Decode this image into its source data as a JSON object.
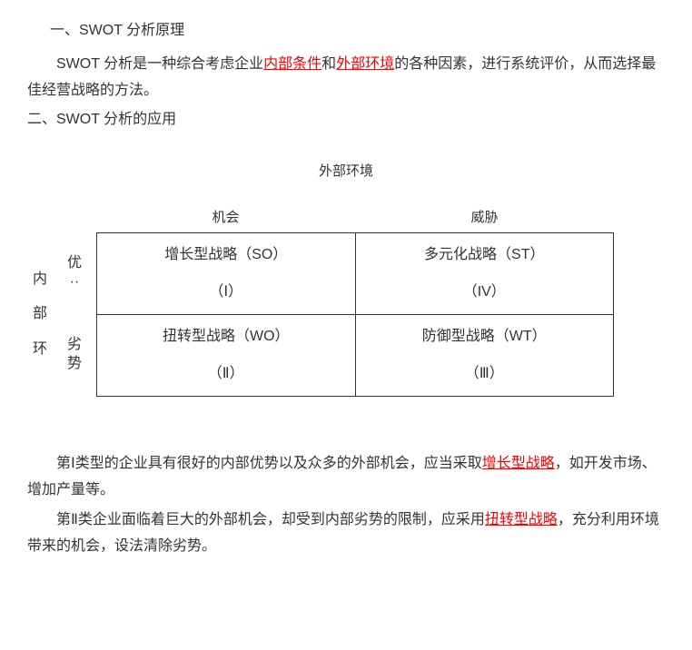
{
  "heading1": "一、SWOT 分析原理",
  "para1_a": "SWOT 分析是一种综合考虑企业",
  "para1_red1": "内部条件",
  "para1_b": "和",
  "para1_red2": "外部环境",
  "para1_c": "的各种因素，进行系统评价，从而选择最佳经营战略的方法。",
  "heading2": "二、SWOT 分析的应用",
  "table_title": "外部环境",
  "side_outer": [
    "内",
    "部",
    "环"
  ],
  "side_row1": [
    "优",
    "··"
  ],
  "side_row2": [
    "劣",
    "势"
  ],
  "col1": "机会",
  "col2": "威胁",
  "swot": {
    "so": {
      "line1": "增长型战略（SO）",
      "line2": "（Ⅰ）"
    },
    "st": {
      "line1": "多元化战略（ST）",
      "line2": "（IV）"
    },
    "wo": {
      "line1": "扭转型战略（WO）",
      "line2": "（Ⅱ）"
    },
    "wt": {
      "line1": "防御型战略（WT）",
      "line2": "（Ⅲ）"
    }
  },
  "para2_a": "第Ⅰ类型的企业具有很好的内部优势以及众多的外部机会，应当采取",
  "para2_red": "增长型战略",
  "para2_b": "，如开发市场、增加产量等。",
  "para3_a": "第Ⅱ类企业面临着巨大的外部机会，却受到内部劣势的限制，应采用",
  "para3_red": "扭转型战略",
  "para3_b": "，充分利用环境带来的机会，设法清除劣势。"
}
